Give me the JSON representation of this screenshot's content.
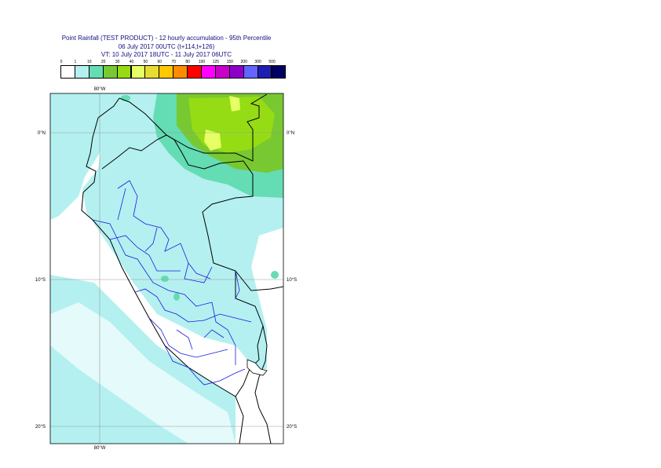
{
  "header": {
    "title": "Point Rainfall (TEST PRODUCT) - 12 hourly accumulation - 95th Percentile",
    "base_time": "06 July 2017 00UTC (t+114,t+126)",
    "valid_time": "VT: 10 July 2017 18UTC - 11 July 2017 06UTC"
  },
  "legend": {
    "thresholds": [
      "0",
      "1",
      "10",
      "20",
      "30",
      "40",
      "50",
      "60",
      "70",
      "80",
      "100",
      "125",
      "150",
      "200",
      "300",
      "500"
    ],
    "colors": [
      "#ffffff",
      "#b4f0f0",
      "#64dcb4",
      "#78c832",
      "#96dc14",
      "#e6ff64",
      "#e6dc32",
      "#ffc800",
      "#ff8c00",
      "#ff0000",
      "#ff00ff",
      "#c800c8",
      "#8c00c8",
      "#6464ff",
      "#1e1eb4",
      "#000064"
    ]
  },
  "axes": {
    "lon_top": "80°W",
    "lon_bottom": "80°W",
    "lat_left": [
      "0°N",
      "10°S",
      "20°S"
    ],
    "lat_right": [
      "0°N",
      "10°S",
      "20°S"
    ]
  }
}
